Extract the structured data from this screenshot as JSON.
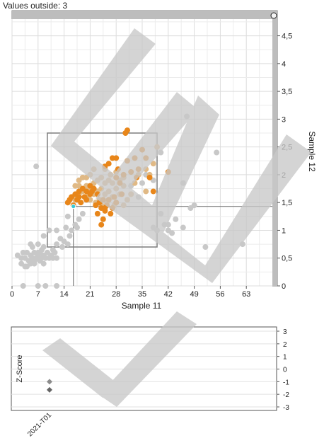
{
  "header": {
    "values_outside": "Values outside: 3"
  },
  "chart_data": [
    {
      "type": "scatter",
      "xlabel": "Sample 11",
      "ylabel": "Sample 12",
      "xlim": [
        0,
        70
      ],
      "ylim": [
        0,
        4.8
      ],
      "x_ticks": [
        "0",
        "7",
        "14",
        "21",
        "28",
        "35",
        "42",
        "49",
        "56",
        "63"
      ],
      "y_ticks": [
        "0",
        "0,5",
        "1",
        "1,5",
        "2",
        "2,5",
        "3",
        "3,5",
        "4",
        "4,5"
      ],
      "x_tick_values": [
        0,
        7,
        14,
        21,
        28,
        35,
        42,
        49,
        56,
        63
      ],
      "y_tick_values": [
        0,
        0.5,
        1,
        1.5,
        2,
        2.5,
        3,
        3.5,
        4,
        4.5
      ],
      "grid": true,
      "colors": {
        "gray": "#c8c8c8",
        "light_orange": "#e0b985",
        "orange": "#e8861a",
        "highlight": "#35c8d8",
        "frame": "#7d7d7d"
      },
      "target_box": {
        "x": [
          9.5,
          39
        ],
        "y": [
          0.7,
          2.75
        ]
      },
      "crosshair": {
        "x": 16.5,
        "y": 1.43
      },
      "series": [
        {
          "color": "gray",
          "points": [
            [
              1.5,
              0.55
            ],
            [
              2.5,
              0.5
            ],
            [
              2.5,
              0.4
            ],
            [
              3.5,
              0.5
            ],
            [
              3.5,
              0.35
            ],
            [
              4,
              0.6
            ],
            [
              4.5,
              0.45
            ],
            [
              5,
              0.55
            ],
            [
              5,
              0.4
            ],
            [
              5.5,
              0.7
            ],
            [
              5.5,
              0.5
            ],
            [
              6,
              0.6
            ],
            [
              6,
              0.45
            ],
            [
              6.5,
              0.5
            ],
            [
              7,
              0.75
            ],
            [
              7,
              0.55
            ],
            [
              7.5,
              0.45
            ],
            [
              7.5,
              0.6
            ],
            [
              8,
              0.5
            ],
            [
              8,
              0.65
            ],
            [
              8.5,
              0.55
            ],
            [
              8.5,
              0.4
            ],
            [
              9,
              0.5
            ],
            [
              9.5,
              0.6
            ],
            [
              10,
              0.5
            ],
            [
              10.5,
              0.55
            ],
            [
              11,
              0.65
            ],
            [
              11,
              0.5
            ],
            [
              11.5,
              0.6
            ],
            [
              12,
              0.5
            ],
            [
              6,
              0.4
            ],
            [
              8.5,
              0.7
            ],
            [
              5,
              0.75
            ],
            [
              4,
              0.35
            ],
            [
              3,
              0.6
            ],
            [
              10,
              1.0
            ],
            [
              12,
              0.75
            ],
            [
              13,
              0.85
            ],
            [
              13.5,
              0.7
            ],
            [
              14,
              0.8
            ],
            [
              15,
              0.75
            ],
            [
              15.5,
              0.9
            ],
            [
              16,
              1.0
            ],
            [
              17,
              1.1
            ],
            [
              15,
              1.25
            ],
            [
              18,
              1.2
            ],
            [
              19,
              1.3
            ],
            [
              14.5,
              1.05
            ],
            [
              17.5,
              1.05
            ],
            [
              8.5,
              0.9
            ],
            [
              7,
              0.6
            ],
            [
              3,
              0.0
            ],
            [
              7,
              0.0
            ],
            [
              9,
              0.0
            ],
            [
              12,
              0.0
            ],
            [
              6.5,
              2.15
            ],
            [
              12,
              1.0
            ],
            [
              32,
              1.8
            ],
            [
              34,
              1.6
            ],
            [
              35,
              1.85
            ],
            [
              36,
              2.0
            ],
            [
              38,
              1.9
            ],
            [
              40,
              1.3
            ],
            [
              41,
              1.1
            ],
            [
              42,
              1.0
            ],
            [
              43,
              0.95
            ],
            [
              44,
              1.2
            ],
            [
              48,
              1.4
            ],
            [
              49,
              1.45
            ],
            [
              46,
              1.05
            ],
            [
              52,
              0.7
            ],
            [
              55,
              2.4
            ],
            [
              46,
              1.85
            ],
            [
              38,
              1.05
            ],
            [
              39,
              1.0
            ],
            [
              40,
              2.4
            ],
            [
              47,
              3.05
            ],
            [
              62,
              0.75
            ],
            [
              42,
              1.1
            ]
          ]
        },
        {
          "color": "light_orange",
          "points": [
            [
              15,
              1.5
            ],
            [
              16,
              1.6
            ],
            [
              17,
              1.55
            ],
            [
              18,
              1.65
            ],
            [
              18,
              1.8
            ],
            [
              19,
              1.7
            ],
            [
              19,
              1.95
            ],
            [
              20,
              1.8
            ],
            [
              20,
              1.6
            ],
            [
              21,
              1.75
            ],
            [
              21,
              1.55
            ],
            [
              21,
              2.0
            ],
            [
              22,
              1.85
            ],
            [
              22,
              1.65
            ],
            [
              22.5,
              1.5
            ],
            [
              23,
              1.9
            ],
            [
              23,
              1.7
            ],
            [
              23.5,
              1.55
            ],
            [
              24,
              1.95
            ],
            [
              24,
              1.75
            ],
            [
              24,
              1.45
            ],
            [
              25,
              1.85
            ],
            [
              25,
              1.65
            ],
            [
              25,
              2.1
            ],
            [
              25.5,
              1.5
            ],
            [
              26,
              1.9
            ],
            [
              26,
              1.7
            ],
            [
              26.5,
              2.0
            ],
            [
              27,
              1.6
            ],
            [
              27,
              1.85
            ],
            [
              27.5,
              1.45
            ],
            [
              28,
              1.75
            ],
            [
              28,
              2.05
            ],
            [
              29,
              1.65
            ],
            [
              29,
              1.9
            ],
            [
              30,
              1.8
            ],
            [
              30,
              1.45
            ],
            [
              31,
              1.55
            ],
            [
              32,
              1.65
            ],
            [
              33,
              1.85
            ],
            [
              34,
              2.0
            ],
            [
              36,
              2.1
            ],
            [
              38,
              2.2
            ],
            [
              36,
              1.7
            ],
            [
              39,
              2.5
            ],
            [
              37,
              2.0
            ],
            [
              20,
              1.95
            ],
            [
              17,
              1.8
            ],
            [
              18,
              1.9
            ],
            [
              30,
              1.95
            ],
            [
              28,
              1.5
            ],
            [
              22,
              2.1
            ]
          ]
        },
        {
          "color": "orange",
          "points": [
            [
              15,
              1.5
            ],
            [
              15.5,
              1.55
            ],
            [
              16,
              1.6
            ],
            [
              16.5,
              1.45
            ],
            [
              17,
              1.65
            ],
            [
              17.5,
              1.55
            ],
            [
              18,
              1.7
            ],
            [
              18.5,
              1.5
            ],
            [
              19,
              1.75
            ],
            [
              19.5,
              1.6
            ],
            [
              20,
              1.7
            ],
            [
              20,
              1.55
            ],
            [
              21,
              1.8
            ],
            [
              21,
              1.65
            ],
            [
              22,
              1.75
            ],
            [
              22.5,
              1.45
            ],
            [
              23,
              1.65
            ],
            [
              23,
              1.3
            ],
            [
              23.5,
              1.5
            ],
            [
              24,
              1.4
            ],
            [
              24.5,
              1.55
            ],
            [
              24.5,
              1.2
            ],
            [
              25,
              1.35
            ],
            [
              25.5,
              1.45
            ],
            [
              26,
              1.55
            ],
            [
              26.5,
              1.3
            ],
            [
              27,
              1.4
            ],
            [
              27.5,
              1.6
            ],
            [
              28,
              1.5
            ],
            [
              28,
              1.95
            ],
            [
              28.5,
              2.1
            ],
            [
              29,
              1.85
            ],
            [
              29.5,
              1.65
            ],
            [
              30,
              2.0
            ],
            [
              31,
              2.25
            ],
            [
              32,
              2.05
            ],
            [
              33,
              2.3
            ],
            [
              33.5,
              1.95
            ],
            [
              35,
              2.45
            ],
            [
              36,
              2.3
            ],
            [
              37,
              1.95
            ],
            [
              38,
              1.7
            ],
            [
              34,
              2.1
            ],
            [
              30.5,
              2.75
            ],
            [
              27,
              2.3
            ],
            [
              28,
              2.3
            ],
            [
              26,
              2.2
            ],
            [
              25,
              2.15
            ],
            [
              31,
              2.8
            ],
            [
              18,
              1.6
            ],
            [
              42,
              2.05
            ],
            [
              21.5,
              1.7
            ],
            [
              24,
              1.1
            ],
            [
              25,
              1.4
            ]
          ]
        },
        {
          "color": "highlight",
          "points": [
            [
              16.5,
              1.43
            ]
          ]
        }
      ]
    },
    {
      "type": "scatter",
      "ylabel": "Z-Score",
      "ylim": [
        -3,
        3
      ],
      "y_ticks": [
        "3",
        "2",
        "1",
        "0",
        "-1",
        "-2",
        "-3"
      ],
      "y_tick_values": [
        3,
        2,
        1,
        0,
        -1,
        -2,
        -3
      ],
      "categories": [
        "2021-T01"
      ],
      "grid": true,
      "series": [
        {
          "color": "#8c8c8c",
          "values": [
            -1.0
          ]
        },
        {
          "color": "#666666",
          "values": [
            -1.65
          ]
        }
      ]
    }
  ]
}
